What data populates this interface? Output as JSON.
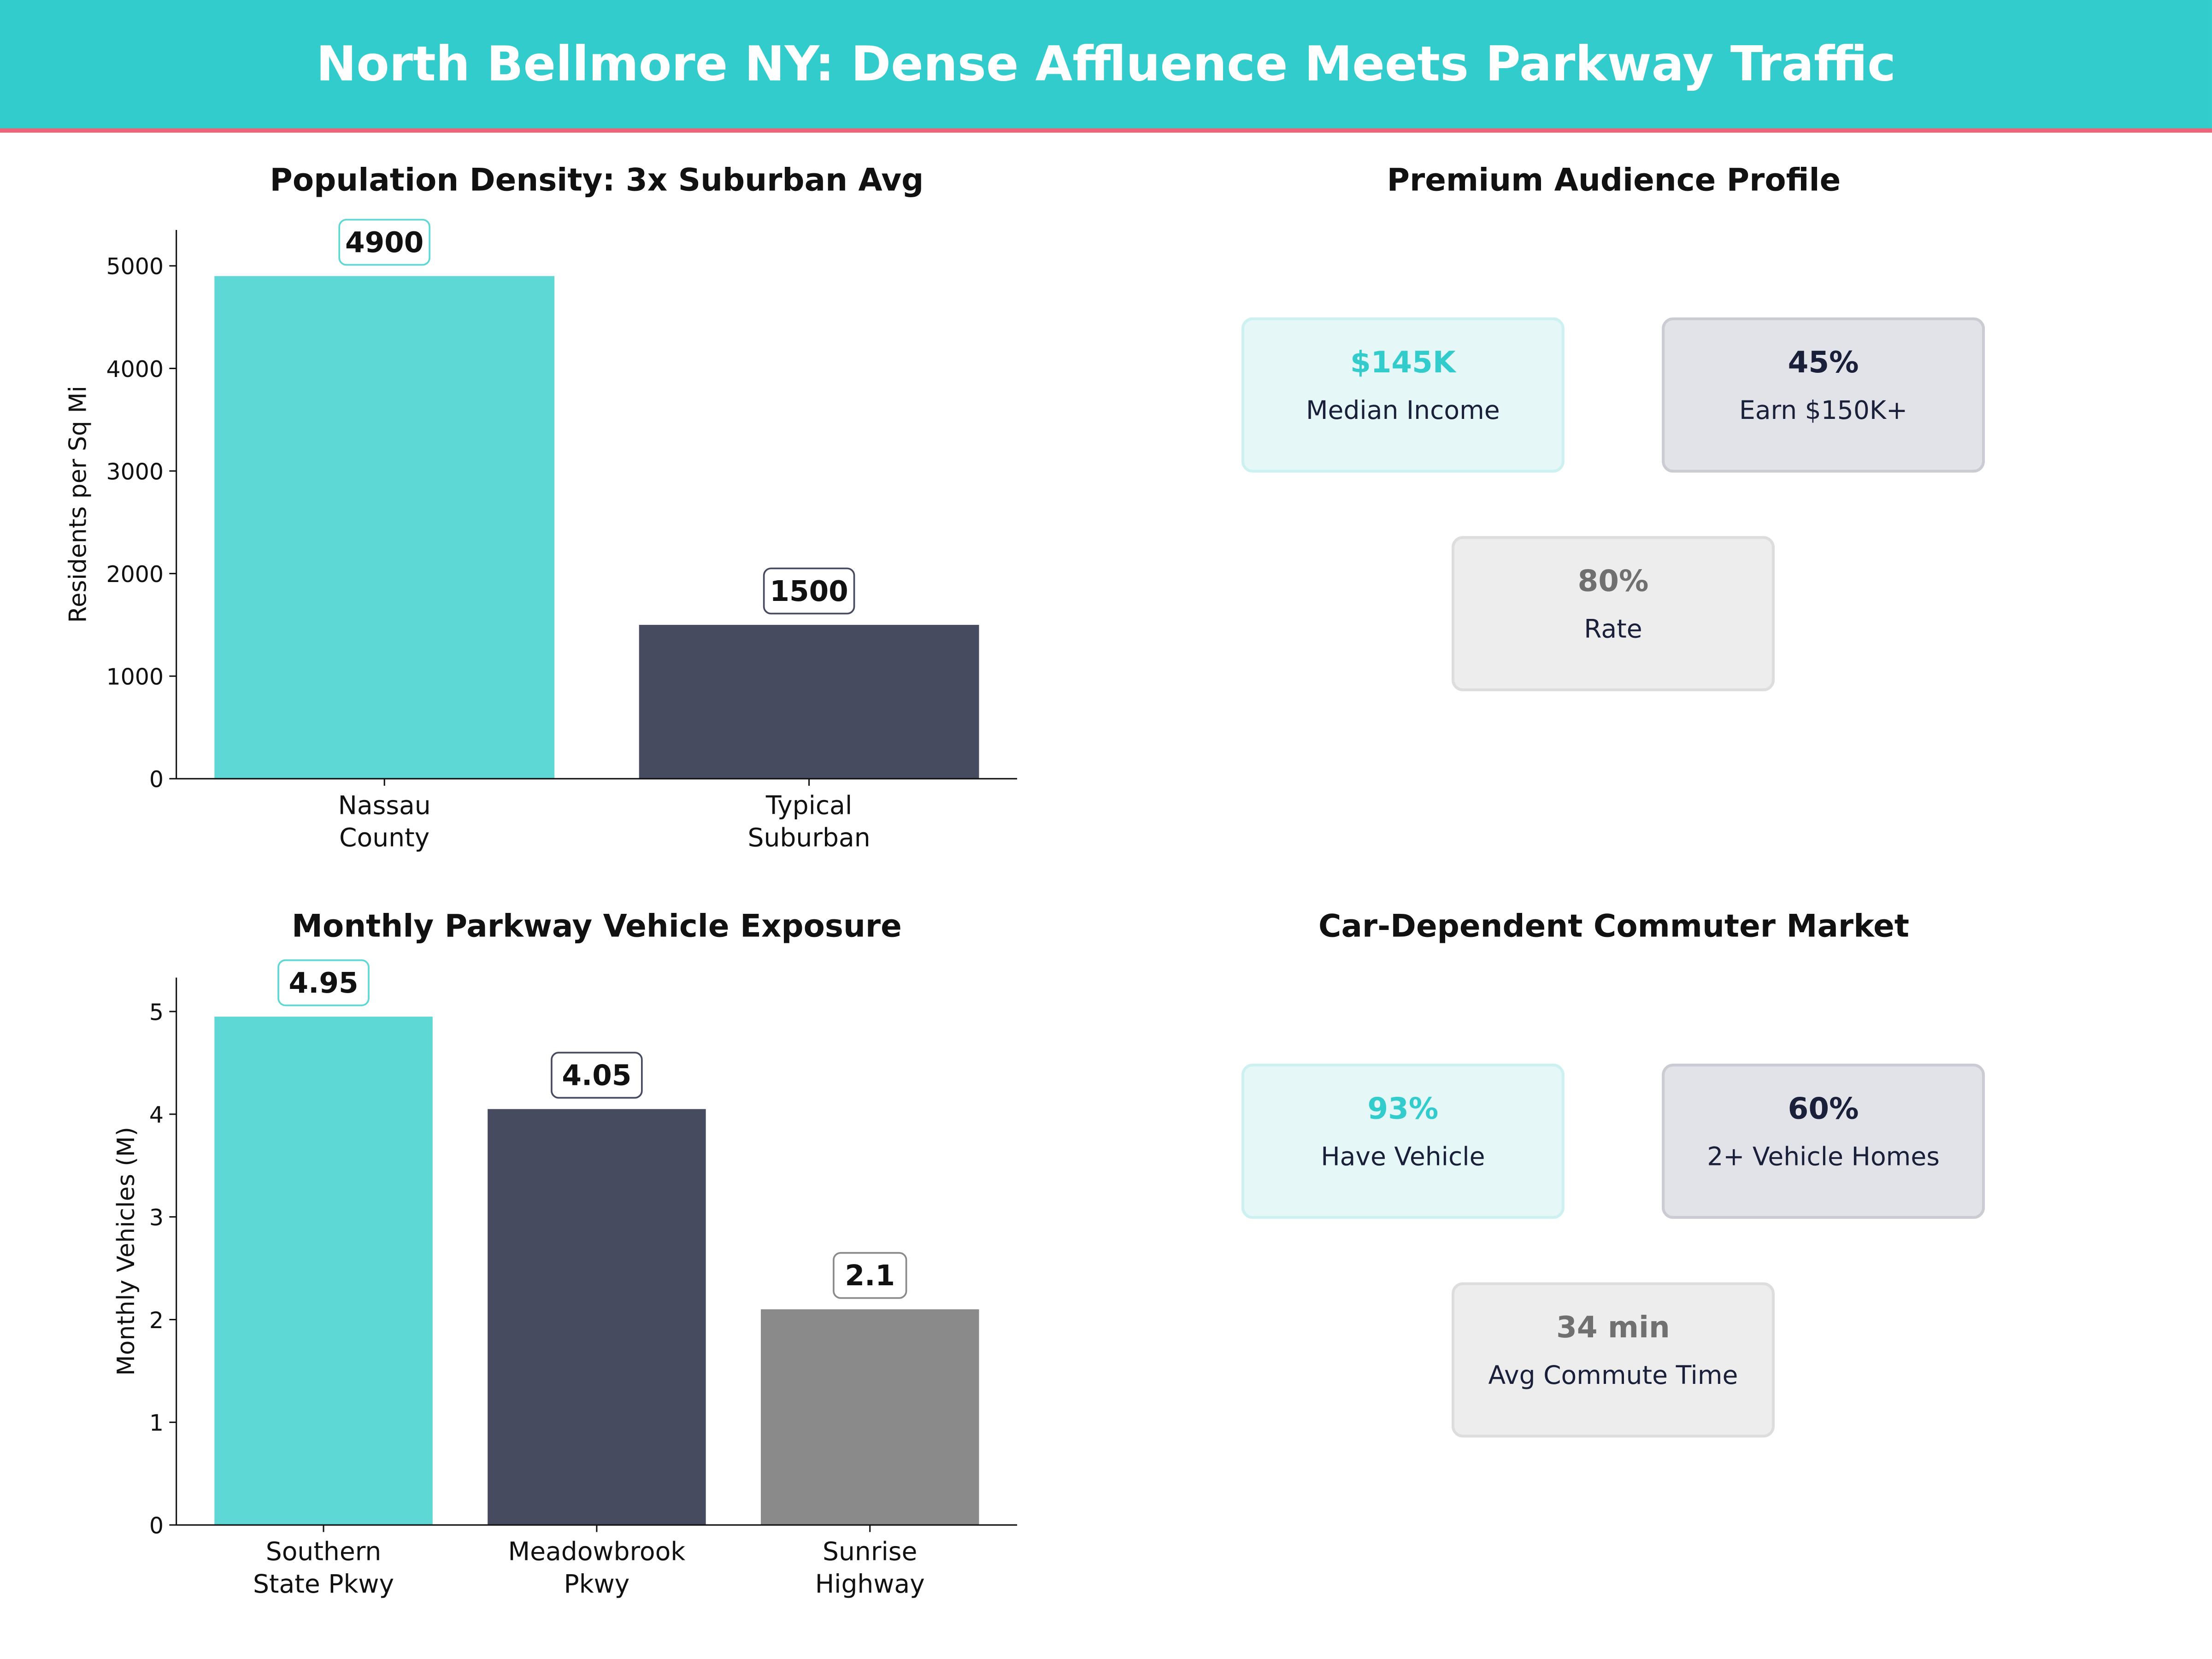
{
  "title": "North Bellmore NY: Dense Affluence Meets Parkway Traffic",
  "colors": {
    "teal": "#5DD8D5",
    "navy": "#464B60",
    "gray": "#8A8A8A",
    "header": "#33CCCC",
    "accent_line": "#F06278"
  },
  "chart_data": [
    {
      "type": "bar",
      "title": "Population Density: 3x Suburban Avg",
      "categories": [
        "Nassau\nCounty",
        "Typical\nSuburban"
      ],
      "values": [
        4900,
        1500
      ],
      "labels": [
        "4900",
        "1500"
      ],
      "xlabel": "",
      "ylabel": "Residents per Sq Mi",
      "ylim": [
        0,
        5350
      ],
      "yticks": [
        0,
        1000,
        2000,
        3000,
        4000,
        5000
      ],
      "bar_colors": [
        "#5DD8D5",
        "#464B60"
      ],
      "grid": false
    },
    {
      "type": "bar",
      "title": "Monthly Parkway Vehicle Exposure",
      "categories": [
        "Southern\nState Pkwy",
        "Meadowbrook\nPkwy",
        "Sunrise\nHighway"
      ],
      "values": [
        4.95,
        4.05,
        2.1
      ],
      "labels": [
        "4.95",
        "4.05",
        "2.1"
      ],
      "xlabel": "",
      "ylabel": "Monthly Vehicles (M)",
      "ylim": [
        0,
        5.33
      ],
      "yticks": [
        0,
        1,
        2,
        3,
        4,
        5
      ],
      "bar_colors": [
        "#5DD8D5",
        "#464B60",
        "#8A8A8A"
      ],
      "grid": false
    }
  ],
  "panels": [
    {
      "title": "Premium Audience Profile",
      "cards": [
        {
          "value": "$145K",
          "label": "Median Income"
        },
        {
          "value": "45%",
          "label": "Earn $150K+"
        },
        {
          "value": "80%",
          "label": "Rate"
        }
      ]
    },
    {
      "title": "Car-Dependent Commuter Market",
      "cards": [
        {
          "value": "93%",
          "label": "Have Vehicle"
        },
        {
          "value": "60%",
          "label": "2+ Vehicle Homes"
        },
        {
          "value": "34 min",
          "label": "Avg Commute Time"
        }
      ]
    }
  ]
}
